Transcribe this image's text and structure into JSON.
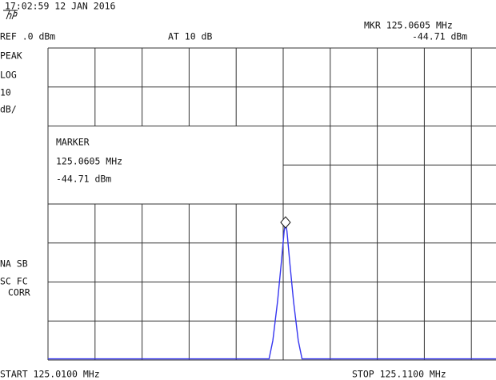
{
  "chart_data": {
    "type": "line",
    "timestamp": "17:02:59 12 JAN 2016",
    "ref_level": "REF .0 dBm",
    "attenuation": "AT 10 dB",
    "marker_header": "MKR 125.0605 MHz",
    "marker_header_level": "-44.71 dBm",
    "side_labels": [
      "PEAK",
      "LOG",
      "10",
      "dB/"
    ],
    "status_labels": [
      "NA SB",
      "SC FC",
      "CORR"
    ],
    "marker_box": {
      "title": "MARKER",
      "frequency": "125.0605 MHz",
      "level": "-44.71 dBm"
    },
    "marker": {
      "x": 125.0605,
      "y": -44.71
    },
    "start_label": "START 125.0100 MHz",
    "stop_label": "STOP 125.1100 MHz",
    "x": [
      125.01,
      125.03,
      125.05,
      125.057,
      125.0578,
      125.0588,
      125.0596,
      125.0602,
      125.0605,
      125.0608,
      125.0614,
      125.0622,
      125.0632,
      125.064,
      125.08,
      125.1,
      125.11
    ],
    "values": [
      -79.7,
      -79.7,
      -79.7,
      -79.7,
      -75,
      -65,
      -55,
      -47,
      -44.71,
      -47,
      -55,
      -65,
      -75,
      -79.7,
      -79.7,
      -79.7,
      -79.7
    ],
    "color": "#3636f0",
    "xlim": [
      125.01,
      125.11
    ],
    "ylim": [
      -80,
      0
    ],
    "xticks": [
      125.01,
      125.02,
      125.03,
      125.04,
      125.05,
      125.06,
      125.07,
      125.08,
      125.09,
      125.1,
      125.11
    ],
    "yticks": [
      0,
      -10,
      -20,
      -30,
      -40,
      -50,
      -60,
      -70,
      -80
    ],
    "grid": true
  }
}
